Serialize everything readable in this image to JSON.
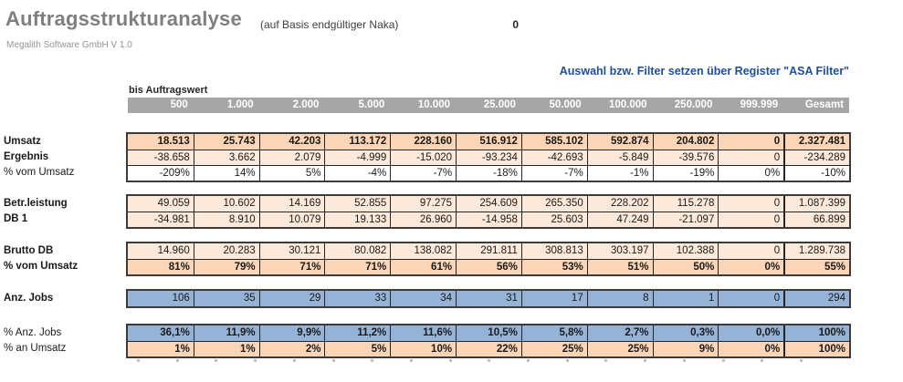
{
  "header": {
    "title": "Auftragsstrukturanalyse",
    "basis_note": "(auf Basis endgültiger Naka)",
    "zero_value": "0",
    "version_line": "Megalith Software GmbH V 1.0",
    "filter_hint": "Auswahl bzw. Filter setzen über Register \"ASA Filter\""
  },
  "table": {
    "col_group_label": "bis Auftragswert",
    "columns": [
      "500",
      "1.000",
      "2.000",
      "5.000",
      "10.000",
      "25.000",
      "50.000",
      "100.000",
      "250.000",
      "999.999",
      "Gesamt"
    ],
    "blocks": [
      {
        "rows": [
          {
            "label": "Umsatz",
            "bold_label": true,
            "bold_values": true,
            "bg": "peach-dark",
            "values": [
              "18.513",
              "25.743",
              "42.203",
              "113.172",
              "228.160",
              "516.912",
              "585.102",
              "592.874",
              "204.802",
              "0",
              "2.327.481"
            ]
          },
          {
            "label": "Ergebnis",
            "bold_label": true,
            "bold_values": false,
            "bg": "peach-light",
            "values": [
              "-38.658",
              "3.662",
              "2.079",
              "-4.999",
              "-15.020",
              "-93.234",
              "-42.693",
              "-5.849",
              "-39.576",
              "0",
              "-234.289"
            ]
          },
          {
            "label": "% vom Umsatz",
            "bold_label": false,
            "bold_values": false,
            "bg": "white",
            "values": [
              "-209%",
              "14%",
              "5%",
              "-4%",
              "-7%",
              "-18%",
              "-7%",
              "-1%",
              "-19%",
              "0%",
              "-10%"
            ]
          }
        ]
      },
      {
        "rows": [
          {
            "label": "Betr.leistung",
            "bold_label": true,
            "bold_values": false,
            "bg": "peach-light",
            "values": [
              "49.059",
              "10.602",
              "14.169",
              "52.855",
              "97.275",
              "254.609",
              "265.350",
              "228.202",
              "115.278",
              "0",
              "1.087.399"
            ]
          },
          {
            "label": "DB 1",
            "bold_label": true,
            "bold_values": false,
            "bg": "peach-light",
            "values": [
              "-34.981",
              "8.910",
              "10.079",
              "19.133",
              "26.960",
              "-14.958",
              "25.603",
              "47.249",
              "-21.097",
              "0",
              "66.899"
            ]
          }
        ]
      },
      {
        "rows": [
          {
            "label": "Brutto DB",
            "bold_label": true,
            "bold_values": false,
            "bg": "peach-light",
            "values": [
              "14.960",
              "20.283",
              "30.121",
              "80.082",
              "138.082",
              "291.811",
              "308.813",
              "303.197",
              "102.388",
              "0",
              "1.289.738"
            ]
          },
          {
            "label": "% vom Umsatz",
            "bold_label": true,
            "bold_values": true,
            "bg": "peach-dark",
            "values": [
              "81%",
              "79%",
              "71%",
              "71%",
              "61%",
              "56%",
              "53%",
              "51%",
              "50%",
              "0%",
              "55%"
            ]
          }
        ]
      },
      {
        "rows": [
          {
            "label": "Anz. Jobs",
            "bold_label": true,
            "bold_values": false,
            "bg": "blue",
            "values": [
              "106",
              "35",
              "29",
              "33",
              "34",
              "31",
              "17",
              "8",
              "1",
              "0",
              "294"
            ]
          }
        ]
      },
      {
        "rows": [
          {
            "label": "% Anz. Jobs",
            "bold_label": false,
            "bold_values": true,
            "bg": "blue",
            "values": [
              "36,1%",
              "11,9%",
              "9,9%",
              "11,2%",
              "11,6%",
              "10,5%",
              "5,8%",
              "2,7%",
              "0,3%",
              "0,0%",
              "100%"
            ]
          },
          {
            "label": "% an Umsatz",
            "bold_label": false,
            "bold_values": true,
            "bg": "peach-dark",
            "values": [
              "1%",
              "1%",
              "2%",
              "5%",
              "10%",
              "22%",
              "25%",
              "25%",
              "9%",
              "0%",
              "100%"
            ]
          }
        ]
      }
    ],
    "artifact_mark_count": 18
  },
  "colors": {
    "header_bar": "#a6a6a6",
    "peach_dark": "#fbd5b5",
    "peach_light": "#fde9d9",
    "blue_row": "#95b3d7",
    "accent_blue_text": "#1f4e9c",
    "title_gray": "#7f7f7f"
  }
}
